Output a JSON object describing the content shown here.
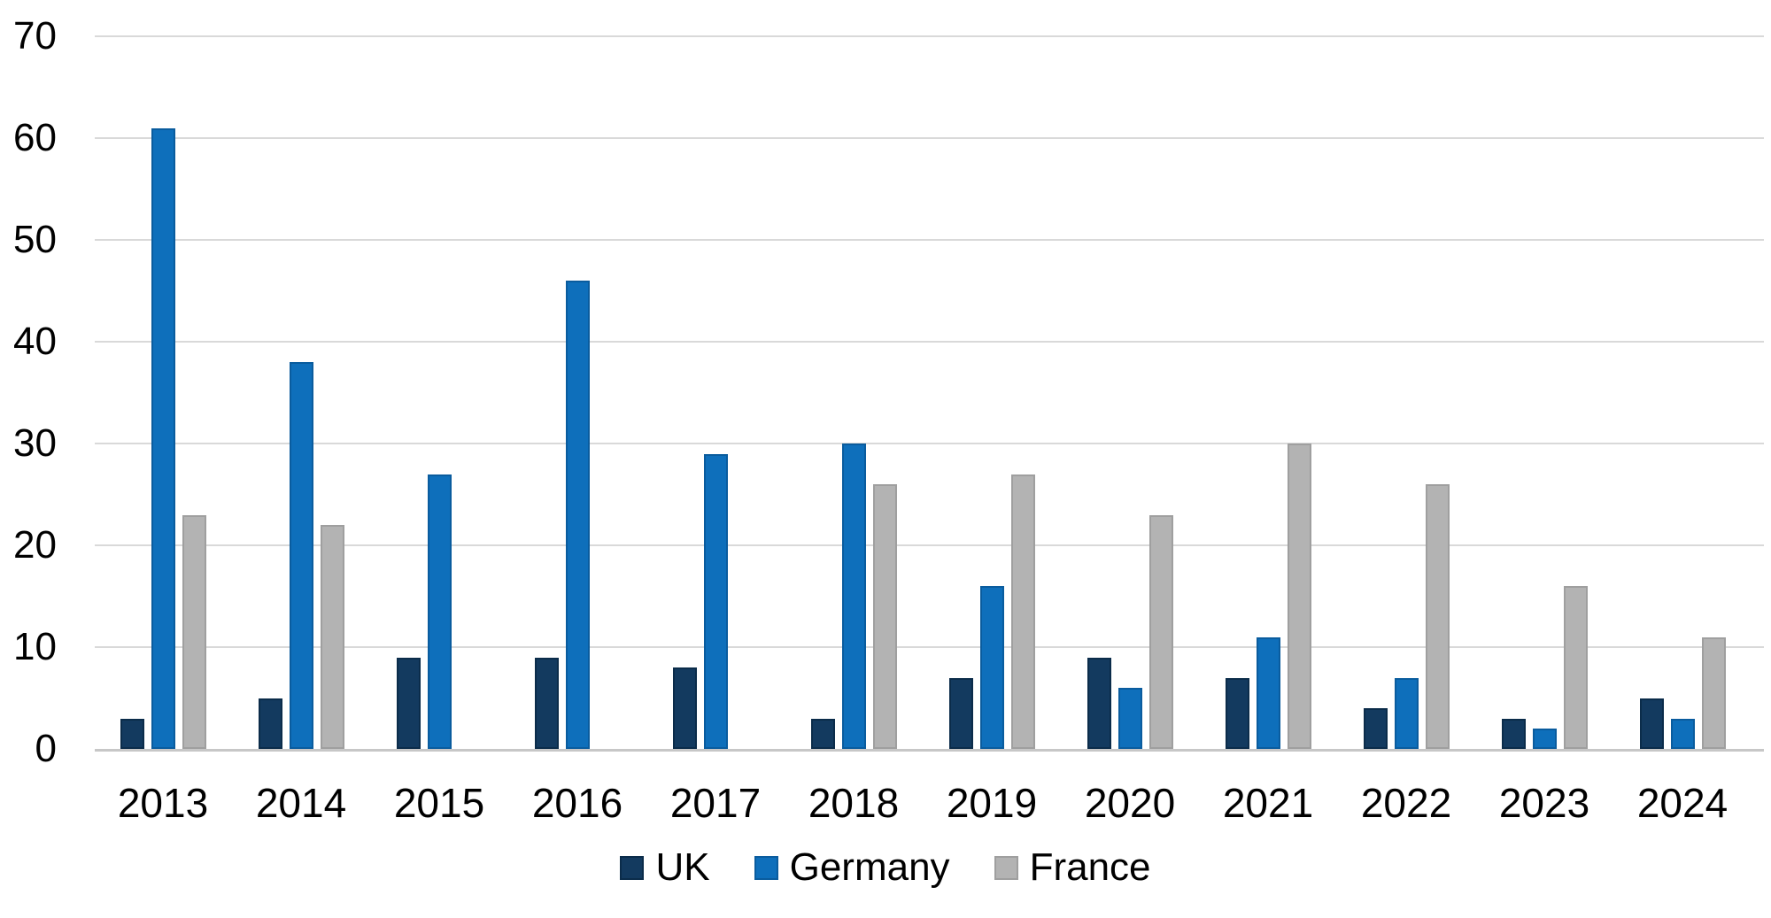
{
  "chart_data": {
    "type": "bar",
    "title": "",
    "xlabel": "",
    "ylabel": "",
    "categories": [
      "2013",
      "2014",
      "2015",
      "2016",
      "2017",
      "2018",
      "2019",
      "2020",
      "2021",
      "2022",
      "2023",
      "2024"
    ],
    "series": [
      {
        "name": "UK",
        "color": "#133a5f",
        "border_color": "#0b2c4a",
        "values": [
          3,
          5,
          9,
          9,
          8,
          3,
          7,
          9,
          7,
          4,
          3,
          5
        ]
      },
      {
        "name": "Germany",
        "color": "#0e6fbb",
        "border_color": "#0a5c9e",
        "values": [
          61,
          38,
          27,
          46,
          29,
          30,
          16,
          6,
          11,
          7,
          2,
          3
        ]
      },
      {
        "name": "France",
        "color": "#b3b3b3",
        "border_color": "#9f9f9f",
        "values": [
          23,
          22,
          0,
          0,
          0,
          26,
          27,
          23,
          30,
          26,
          16,
          11
        ]
      }
    ],
    "ylim": [
      0,
      70
    ],
    "yticks": [
      0,
      10,
      20,
      30,
      40,
      50,
      60,
      70
    ],
    "grid": true,
    "gridline_color": "#d9d9d9",
    "axis_line_color": "#c7c7c7",
    "text_color": "#000000",
    "background": "#ffffff",
    "legend_position": "bottom",
    "legend": [
      "UK",
      "Germany",
      "France"
    ]
  }
}
